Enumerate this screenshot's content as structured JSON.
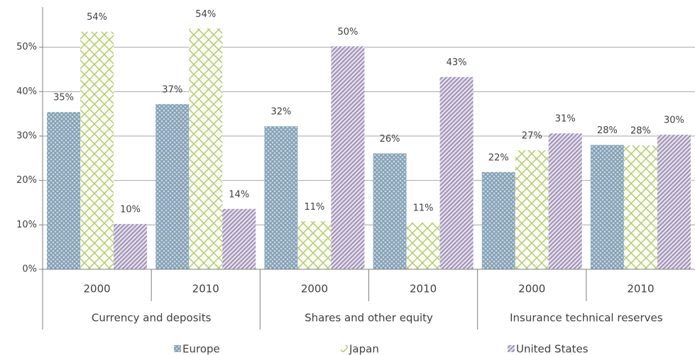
{
  "chart_data": {
    "type": "bar",
    "groups": [
      "Currency and deposits",
      "Shares and other equity",
      "Insurance technical reserves"
    ],
    "categories": [
      "2000",
      "2010",
      "2000",
      "2010",
      "2000",
      "2010"
    ],
    "series": [
      {
        "name": "Europe",
        "color": "#7f9db3",
        "values": [
          35.4,
          37.2,
          32.2,
          26.1,
          21.9,
          28.0
        ],
        "value_labels": [
          "35%",
          "37%",
          "32%",
          "26%",
          "22%",
          "28%"
        ]
      },
      {
        "name": "Japan",
        "color": "#b5c97a",
        "values": [
          53.5,
          54.2,
          10.8,
          10.5,
          26.8,
          27.9
        ],
        "value_labels": [
          "54%",
          "54%",
          "11%",
          "11%",
          "27%",
          "28%"
        ]
      },
      {
        "name": "United States",
        "color": "#9a8bb0",
        "values": [
          10.2,
          13.6,
          50.2,
          43.3,
          30.6,
          30.3
        ],
        "value_labels": [
          "10%",
          "14%",
          "50%",
          "43%",
          "31%",
          "30%"
        ]
      }
    ],
    "ylim": [
      0,
      60
    ],
    "yticks": [
      {
        "value": 0,
        "label": "0%"
      },
      {
        "value": 10,
        "label": "10%"
      },
      {
        "value": 20,
        "label": "20%"
      },
      {
        "value": 30,
        "label": "30%"
      },
      {
        "value": 40,
        "label": "40%"
      },
      {
        "value": 50,
        "label": "50%"
      }
    ],
    "grid": true
  }
}
